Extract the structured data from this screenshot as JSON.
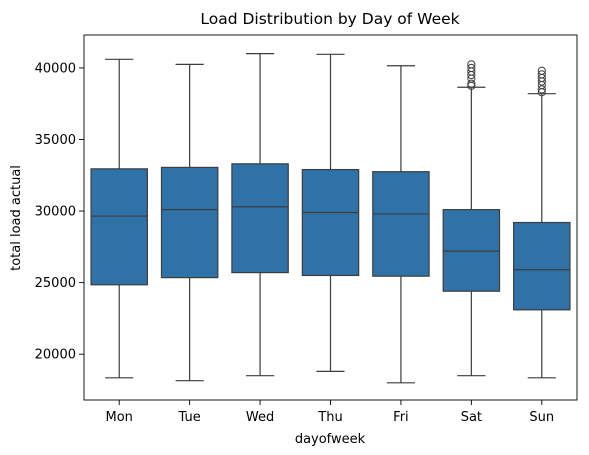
{
  "chart_data": {
    "type": "box",
    "title": "Load Distribution by Day of Week",
    "xlabel": "dayofweek",
    "ylabel": "total load actual",
    "categories": [
      "Mon",
      "Tue",
      "Wed",
      "Thu",
      "Fri",
      "Sat",
      "Sun"
    ],
    "ylim": [
      16800,
      42300
    ],
    "yticks": [
      20000,
      25000,
      30000,
      35000,
      40000
    ],
    "ytick_labels": [
      "20000",
      "25000",
      "30000",
      "35000",
      "40000"
    ],
    "grid": false,
    "legend": "none",
    "box_color": "#2e72a8",
    "line_color": "#3d3d3d",
    "boxes": [
      {
        "category": "Mon",
        "whisker_low": 18350,
        "q1": 24850,
        "median": 29650,
        "q3": 32950,
        "whisker_high": 40600,
        "outliers": []
      },
      {
        "category": "Tue",
        "whisker_low": 18150,
        "q1": 25350,
        "median": 30100,
        "q3": 33050,
        "whisker_high": 40250,
        "outliers": []
      },
      {
        "category": "Wed",
        "whisker_low": 18500,
        "q1": 25700,
        "median": 30300,
        "q3": 33300,
        "whisker_high": 41000,
        "outliers": []
      },
      {
        "category": "Thu",
        "whisker_low": 18800,
        "q1": 25500,
        "median": 29900,
        "q3": 32900,
        "whisker_high": 40950,
        "outliers": []
      },
      {
        "category": "Fri",
        "whisker_low": 18000,
        "q1": 25450,
        "median": 29800,
        "q3": 32750,
        "whisker_high": 40150,
        "outliers": []
      },
      {
        "category": "Sat",
        "whisker_low": 18500,
        "q1": 24400,
        "median": 27200,
        "q3": 30100,
        "whisker_high": 38650,
        "outliers": [
          38750,
          38900,
          39250,
          39500,
          39750,
          40000,
          40250
        ]
      },
      {
        "category": "Sun",
        "whisker_low": 18350,
        "q1": 23100,
        "median": 25900,
        "q3": 29200,
        "whisker_high": 38200,
        "outliers": [
          38300,
          38500,
          38800,
          39050,
          39300,
          39550,
          39800
        ]
      }
    ]
  }
}
